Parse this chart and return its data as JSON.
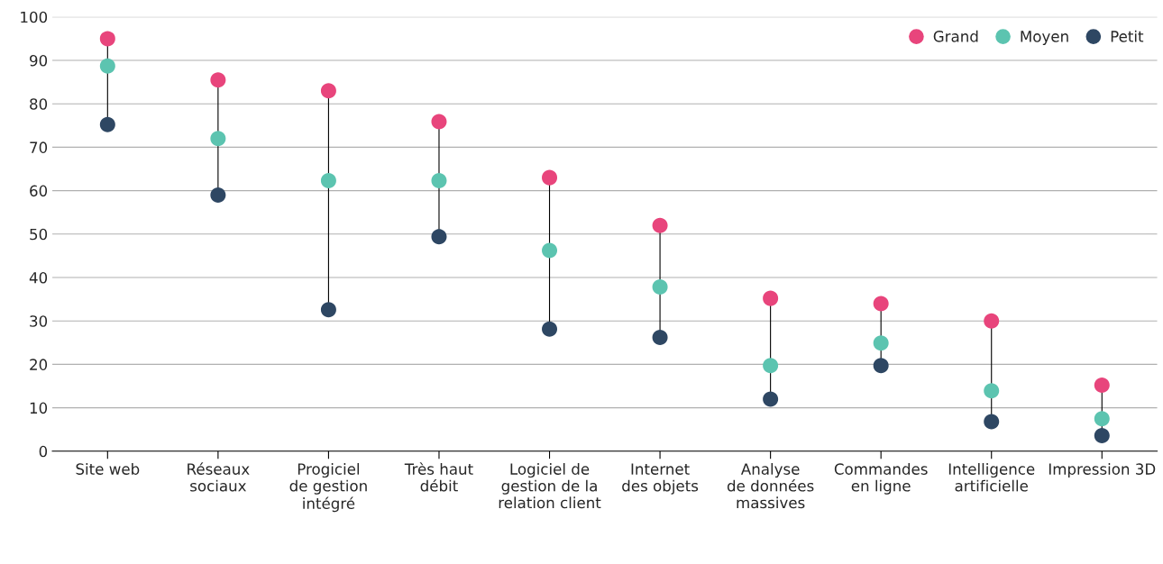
{
  "chart_data": {
    "type": "scatter",
    "categories": [
      "Site web",
      "Réseaux\nsociaux",
      "Progiciel\nde gestion\nintégré",
      "Très haut\ndébit",
      "Logiciel de\ngestion de la\nrelation client",
      "Internet\ndes objets",
      "Analyse\nde données\nmassives",
      "Commandes\nen ligne",
      "Intelligence\nartificielle",
      "Impression 3D"
    ],
    "series": [
      {
        "name": "Grand",
        "color": "#e8457c",
        "values": [
          95,
          85.5,
          83,
          75.9,
          63,
          52,
          35.2,
          34,
          30,
          15.2
        ]
      },
      {
        "name": "Moyen",
        "color": "#5cc4b0",
        "values": [
          88.7,
          72,
          62.3,
          62.3,
          46.2,
          37.8,
          19.7,
          24.9,
          13.9,
          7.5
        ]
      },
      {
        "name": "Petit",
        "color": "#2e4763",
        "values": [
          75.2,
          59,
          32.6,
          49.4,
          28.1,
          26.2,
          12,
          19.7,
          6.8,
          3.6
        ]
      }
    ],
    "ylim": [
      0,
      100
    ],
    "yticks": [
      0,
      10,
      20,
      30,
      40,
      50,
      60,
      70,
      80,
      90,
      100
    ],
    "grid": "y",
    "legend": "top right",
    "marker": "circle"
  }
}
